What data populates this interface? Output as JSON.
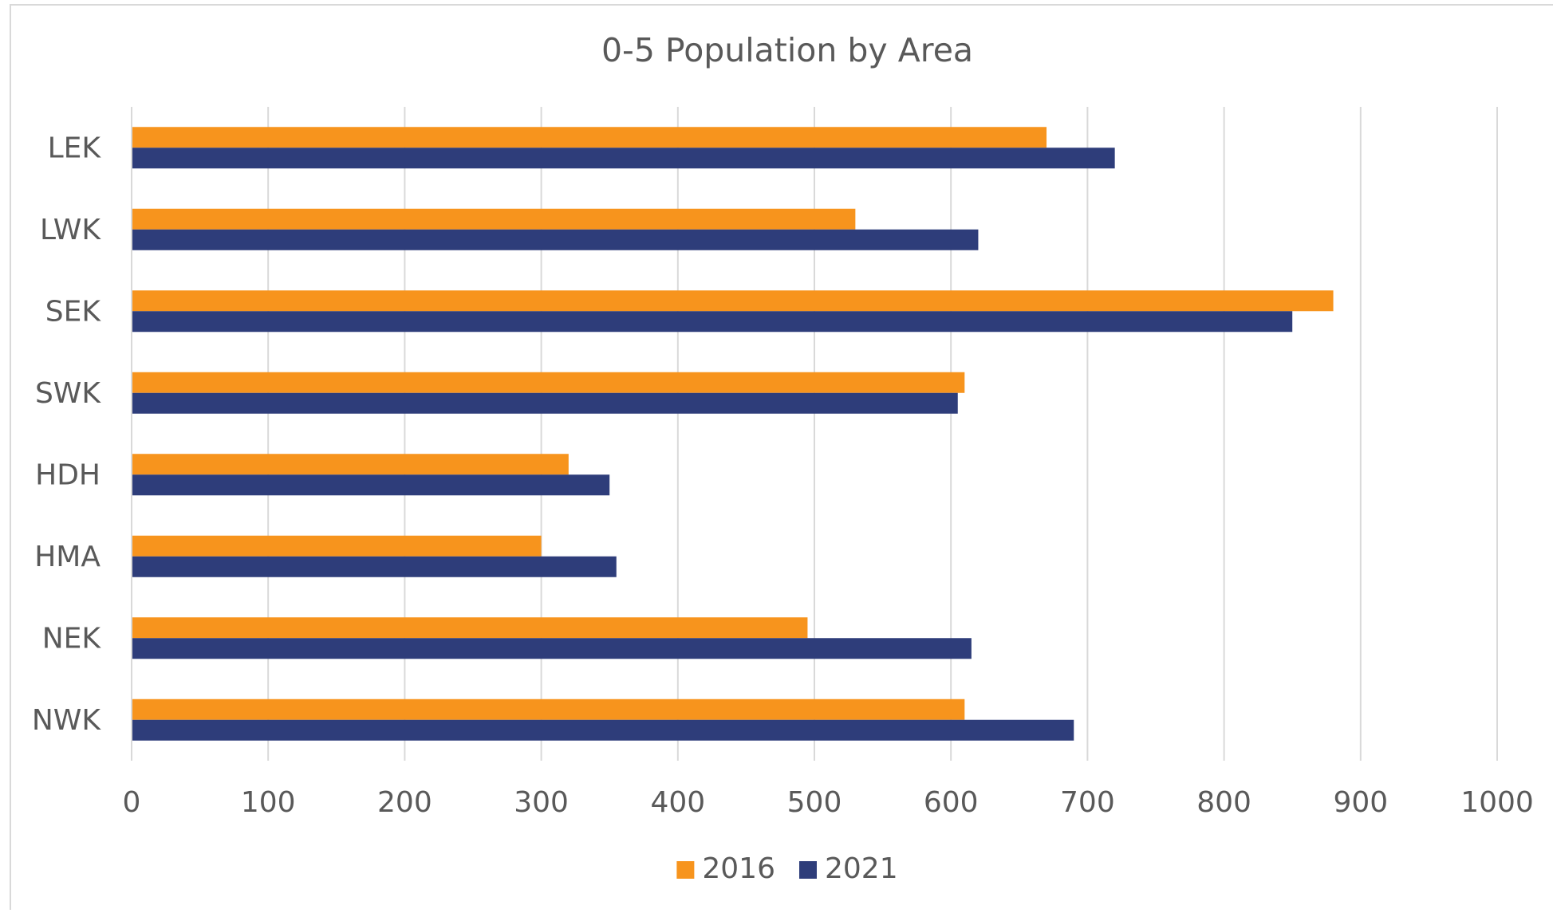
{
  "chart_data": {
    "type": "barh",
    "title": "0-5 Population by Area",
    "categories": [
      "LEK",
      "LWK",
      "SEK",
      "SWK",
      "HDH",
      "HMA",
      "NEK",
      "NWK"
    ],
    "series": [
      {
        "name": "2016",
        "color": "#f7941d",
        "values": [
          670,
          530,
          880,
          610,
          320,
          300,
          495,
          610
        ]
      },
      {
        "name": "2021",
        "color": "#2e3d7a",
        "values": [
          720,
          620,
          850,
          605,
          350,
          355,
          615,
          690
        ]
      }
    ],
    "xlim": [
      0,
      1000
    ],
    "xticks": [
      0,
      100,
      200,
      300,
      400,
      500,
      600,
      700,
      800,
      900,
      1000
    ],
    "grid": true,
    "legend": "bottom"
  }
}
